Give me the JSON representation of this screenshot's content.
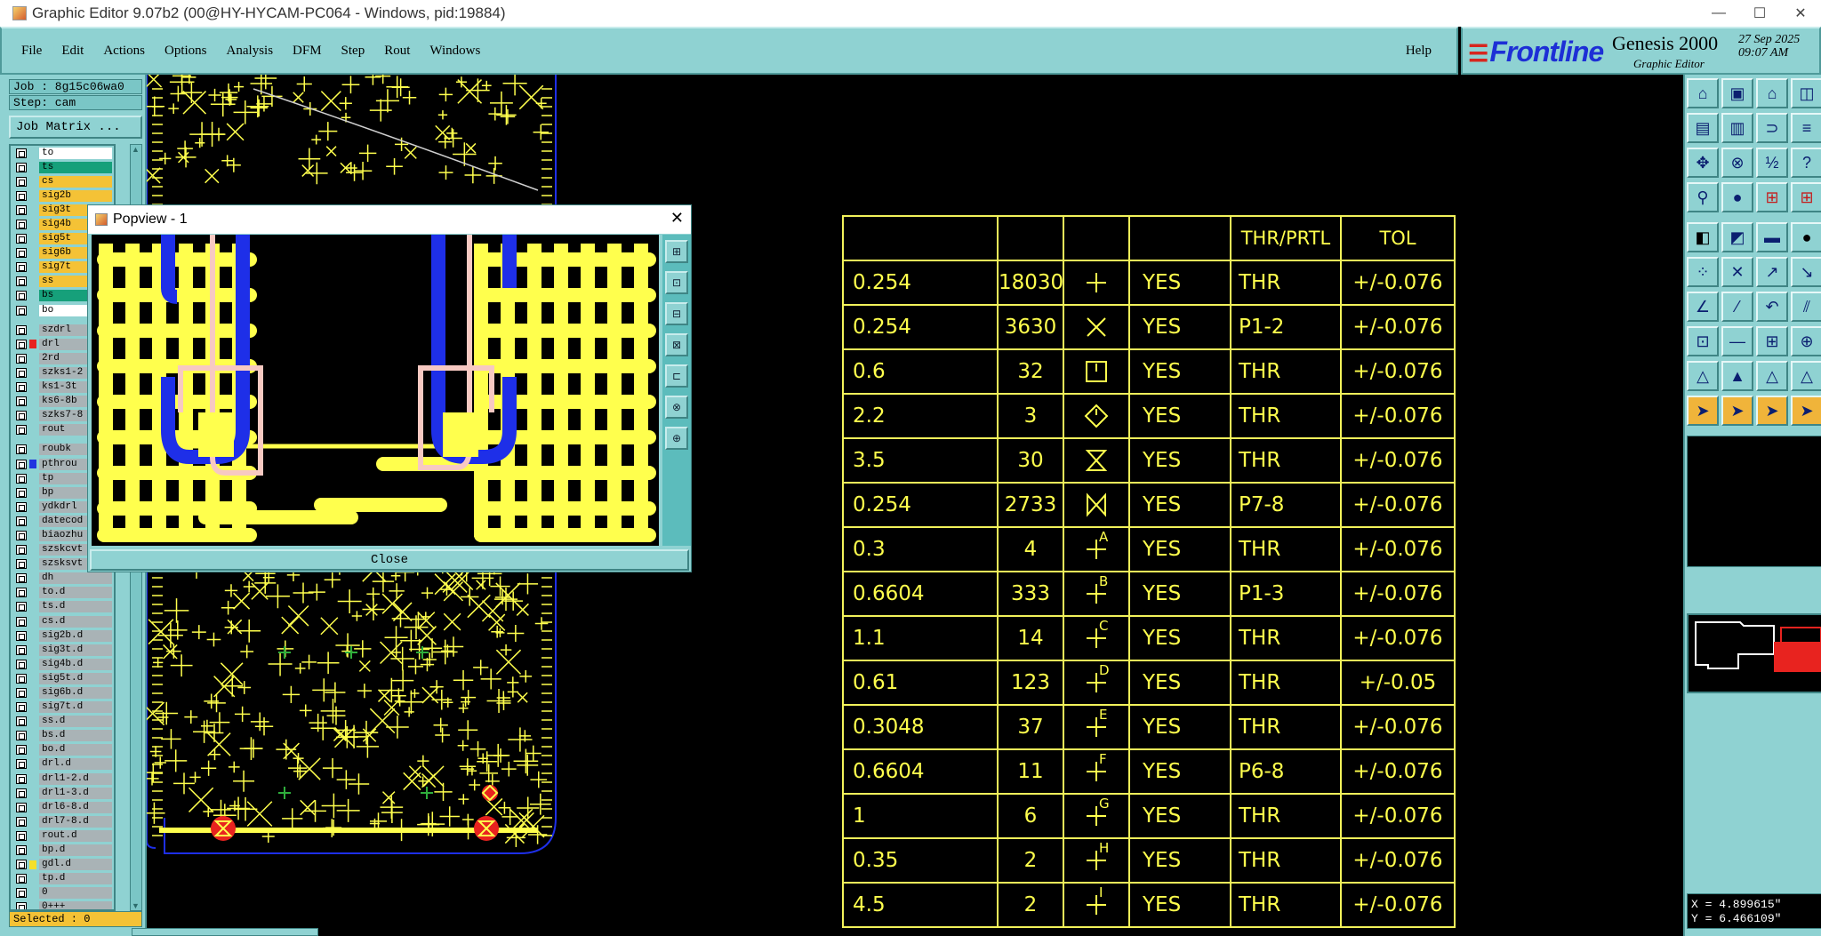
{
  "window": {
    "title": "Graphic Editor 9.07b2 (00@HY-HYCAM-PC064 - Windows, pid:19884)",
    "minimize": "—",
    "maximize": "☐",
    "close": "✕"
  },
  "menu": {
    "items": [
      "File",
      "Edit",
      "Actions",
      "Options",
      "Analysis",
      "DFM",
      "Step",
      "Rout",
      "Windows"
    ],
    "help": "Help"
  },
  "brand": {
    "logo": "Frontline",
    "product": "Genesis 2000",
    "subtitle": "Graphic Editor",
    "date": "27 Sep 2025",
    "time": "09:07 AM"
  },
  "left_panel": {
    "job": "Job : 8g15c06wa0",
    "step": "Step: cam",
    "job_matrix": "Job Matrix ...",
    "selected": "Selected : 0",
    "layers": [
      {
        "name": "to",
        "color": "#ffffff"
      },
      {
        "name": "ts",
        "color": "#16a07a"
      },
      {
        "name": "cs",
        "color": "#f4c236"
      },
      {
        "name": "sig2b",
        "color": "#f4c236"
      },
      {
        "name": "sig3t",
        "color": "#f4c236"
      },
      {
        "name": "sig4b",
        "color": "#f4c236"
      },
      {
        "name": "sig5t",
        "color": "#f4c236"
      },
      {
        "name": "sig6b",
        "color": "#f4c236"
      },
      {
        "name": "sig7t",
        "color": "#f4c236"
      },
      {
        "name": "ss",
        "color": "#f4c236"
      },
      {
        "name": "bs",
        "color": "#16a07a"
      },
      {
        "name": "bo",
        "color": "#ffffff"
      },
      {
        "gap": true
      },
      {
        "name": "szdrl",
        "color": "#a9b3b6"
      },
      {
        "name": "drl",
        "color": "#a9b3b6",
        "swatch": "#e8231f",
        "active": true
      },
      {
        "name": "2rd",
        "color": "#a9b3b6"
      },
      {
        "name": "szks1-2",
        "color": "#a9b3b6"
      },
      {
        "name": "ks1-3t",
        "color": "#a9b3b6"
      },
      {
        "name": "ks6-8b",
        "color": "#a9b3b6"
      },
      {
        "name": "szks7-8",
        "color": "#a9b3b6"
      },
      {
        "name": "rout",
        "color": "#a9b3b6"
      },
      {
        "gap": true
      },
      {
        "name": "roubk",
        "color": "#a9b3b6"
      },
      {
        "name": "pthrou",
        "color": "#a9b3b6",
        "swatch": "#2034e0"
      },
      {
        "name": "tp",
        "color": "#a9b3b6"
      },
      {
        "name": "bp",
        "color": "#a9b3b6"
      },
      {
        "name": "ydkdrl",
        "color": "#a9b3b6"
      },
      {
        "name": "datecod",
        "color": "#a9b3b6"
      },
      {
        "name": "biaozhu",
        "color": "#a9b3b6"
      },
      {
        "name": "szskcvt",
        "color": "#a9b3b6"
      },
      {
        "name": "szsksvt",
        "color": "#a9b3b6"
      },
      {
        "name": "dh",
        "color": "#a9b3b6"
      },
      {
        "name": "to.d",
        "color": "#a9b3b6"
      },
      {
        "name": "ts.d",
        "color": "#a9b3b6"
      },
      {
        "name": "cs.d",
        "color": "#a9b3b6"
      },
      {
        "name": "sig2b.d",
        "color": "#a9b3b6"
      },
      {
        "name": "sig3t.d",
        "color": "#a9b3b6"
      },
      {
        "name": "sig4b.d",
        "color": "#a9b3b6"
      },
      {
        "name": "sig5t.d",
        "color": "#a9b3b6"
      },
      {
        "name": "sig6b.d",
        "color": "#a9b3b6"
      },
      {
        "name": "sig7t.d",
        "color": "#a9b3b6"
      },
      {
        "name": "ss.d",
        "color": "#a9b3b6"
      },
      {
        "name": "bs.d",
        "color": "#a9b3b6"
      },
      {
        "name": "bo.d",
        "color": "#a9b3b6"
      },
      {
        "name": "drl.d",
        "color": "#a9b3b6"
      },
      {
        "name": "drl1-2.d",
        "color": "#a9b3b6"
      },
      {
        "name": "drl1-3.d",
        "color": "#a9b3b6"
      },
      {
        "name": "drl6-8.d",
        "color": "#a9b3b6"
      },
      {
        "name": "drl7-8.d",
        "color": "#a9b3b6"
      },
      {
        "name": "rout.d",
        "color": "#a9b3b6"
      },
      {
        "name": "bp.d",
        "color": "#a9b3b6"
      },
      {
        "name": "gdl.d",
        "color": "#a9b3b6",
        "swatch": "#f4e02a"
      },
      {
        "name": "tp.d",
        "color": "#a9b3b6"
      },
      {
        "name": "0",
        "color": "#a9b3b6"
      },
      {
        "name": "0+++",
        "color": "#a9b3b6"
      }
    ]
  },
  "popview": {
    "title": "Popview - 1",
    "close_x": "✕",
    "close_button": "Close",
    "tools": [
      "⊞",
      "⊡",
      "⊟",
      "⊠",
      "⊏",
      "⊗",
      "⊕"
    ]
  },
  "drill_table": {
    "headers": [
      "",
      "",
      "",
      "",
      "THR/PRTL",
      "TOL"
    ],
    "rows": [
      {
        "size": "0.254",
        "count": "18030",
        "sym": "plus",
        "letter": "",
        "yes": "YES",
        "thr": "THR",
        "tol": "+/-0.076"
      },
      {
        "size": "0.254",
        "count": "3630",
        "sym": "x",
        "letter": "",
        "yes": "YES",
        "thr": "P1-2",
        "tol": "+/-0.076"
      },
      {
        "size": "0.6",
        "count": "32",
        "sym": "box-tick",
        "letter": "",
        "yes": "YES",
        "thr": "THR",
        "tol": "+/-0.076"
      },
      {
        "size": "2.2",
        "count": "3",
        "sym": "diamond",
        "letter": "",
        "yes": "YES",
        "thr": "THR",
        "tol": "+/-0.076"
      },
      {
        "size": "3.5",
        "count": "30",
        "sym": "hourglass",
        "letter": "",
        "yes": "YES",
        "thr": "THR",
        "tol": "+/-0.076"
      },
      {
        "size": "0.254",
        "count": "2733",
        "sym": "bowtie",
        "letter": "",
        "yes": "YES",
        "thr": "P7-8",
        "tol": "+/-0.076"
      },
      {
        "size": "0.3",
        "count": "4",
        "sym": "plus",
        "letter": "A",
        "yes": "YES",
        "thr": "THR",
        "tol": "+/-0.076"
      },
      {
        "size": "0.6604",
        "count": "333",
        "sym": "plus",
        "letter": "B",
        "yes": "YES",
        "thr": "P1-3",
        "tol": "+/-0.076"
      },
      {
        "size": "1.1",
        "count": "14",
        "sym": "plus",
        "letter": "C",
        "yes": "YES",
        "thr": "THR",
        "tol": "+/-0.076"
      },
      {
        "size": "0.61",
        "count": "123",
        "sym": "plus",
        "letter": "D",
        "yes": "YES",
        "thr": "THR",
        "tol": "+/-0.05"
      },
      {
        "size": "0.3048",
        "count": "37",
        "sym": "plus",
        "letter": "E",
        "yes": "YES",
        "thr": "THR",
        "tol": "+/-0.076"
      },
      {
        "size": "0.6604",
        "count": "11",
        "sym": "plus",
        "letter": "F",
        "yes": "YES",
        "thr": "P6-8",
        "tol": "+/-0.076"
      },
      {
        "size": "1",
        "count": "6",
        "sym": "plus",
        "letter": "G",
        "yes": "YES",
        "thr": "THR",
        "tol": "+/-0.076"
      },
      {
        "size": "0.35",
        "count": "2",
        "sym": "plus",
        "letter": "H",
        "yes": "YES",
        "thr": "THR",
        "tol": "+/-0.076"
      },
      {
        "size": "4.5",
        "count": "2",
        "sym": "plus",
        "letter": "I",
        "yes": "YES",
        "thr": "THR",
        "tol": "+/-0.076"
      }
    ]
  },
  "right_panel": {
    "tool_icons": [
      "⌂",
      "▣",
      "⌂",
      "◫",
      "▤",
      "▥",
      "⊃",
      "≡",
      "✥",
      "⊗",
      "½",
      "?",
      "⚲",
      "●",
      "⊞",
      "⊞",
      "◧",
      "◩",
      "▬",
      "●",
      "⁘",
      "✕",
      "↗",
      "↘",
      "∠",
      "⁄",
      "↶",
      "⫽",
      "⊡",
      "—",
      "⊞",
      "⊕",
      "△",
      "▲",
      "△",
      "△",
      "➤",
      "➤",
      "➤",
      "➤"
    ],
    "coord_x": "X = 4.899615\"",
    "coord_y": "Y = 6.466109\""
  },
  "colors": {
    "panel": "#8fd2d2",
    "trace": "#ffff4d",
    "blue": "#1e2fe8",
    "pink": "#f7c9c2"
  }
}
